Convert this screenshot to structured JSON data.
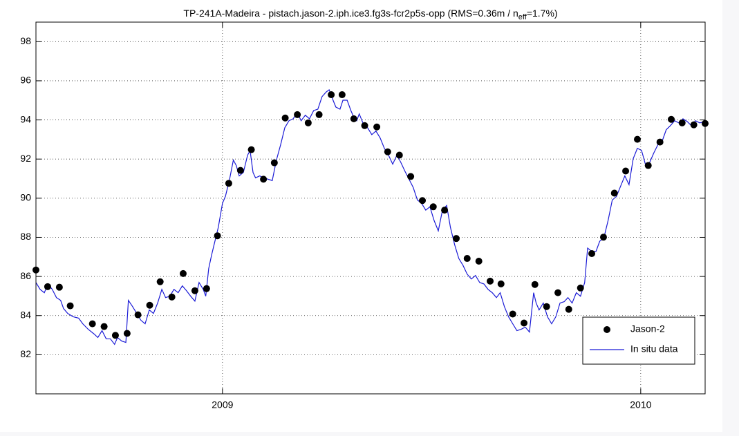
{
  "chart_data": {
    "type": "scatter",
    "title": [
      "TP-241A-Madeira - pistach.jason-2.iph.ice3.fg3s-fcr2p5s-opp (RMS=0.36m / n",
      "eff",
      "=1.7%)"
    ],
    "xlim": [
      2008.554,
      2010.154
    ],
    "xticks": [
      2009,
      2010
    ],
    "ylim": [
      80,
      99
    ],
    "yticks": [
      82,
      84,
      86,
      88,
      90,
      92,
      94,
      96,
      98
    ],
    "grid": true,
    "legend": "lower right",
    "series": [
      {
        "name": "Jason-2",
        "type": "scatter",
        "color": "#000000",
        "x": [
          2008.554,
          2008.582,
          2008.61,
          2008.636,
          2008.689,
          2008.717,
          2008.744,
          2008.772,
          2008.798,
          2008.826,
          2008.851,
          2008.879,
          2008.906,
          2008.934,
          2008.962,
          2008.988,
          2009.015,
          2009.043,
          2009.069,
          2009.098,
          2009.124,
          2009.15,
          2009.179,
          2009.205,
          2009.231,
          2009.26,
          2009.286,
          2009.314,
          2009.34,
          2009.369,
          2009.395,
          2009.423,
          2009.45,
          2009.478,
          2009.504,
          2009.531,
          2009.559,
          2009.585,
          2009.613,
          2009.64,
          2009.666,
          2009.694,
          2009.721,
          2009.747,
          2009.775,
          2009.802,
          2009.828,
          2009.856,
          2009.883,
          2009.911,
          2009.937,
          2009.964,
          2009.992,
          2010.018,
          2010.046,
          2010.073,
          2010.099,
          2010.127,
          2010.154
        ],
        "values": [
          86.33,
          85.48,
          85.45,
          84.5,
          83.58,
          83.44,
          82.99,
          83.09,
          84.04,
          84.53,
          85.73,
          84.95,
          86.15,
          85.27,
          85.38,
          88.08,
          90.76,
          91.42,
          92.48,
          90.97,
          91.81,
          94.1,
          94.27,
          93.85,
          94.27,
          95.29,
          95.29,
          94.06,
          93.71,
          93.64,
          92.37,
          92.2,
          91.11,
          89.88,
          89.56,
          89.39,
          87.94,
          86.92,
          86.78,
          85.76,
          85.62,
          84.08,
          83.62,
          85.59,
          84.46,
          85.17,
          84.32,
          85.41,
          87.17,
          88.01,
          90.26,
          91.39,
          93.01,
          91.67,
          92.87,
          94.03,
          93.85,
          93.75,
          93.82
        ]
      },
      {
        "name": "In situ data",
        "type": "line",
        "color": "#1a1ad6",
        "x": [
          2008.554,
          2008.564,
          2008.574,
          2008.583,
          2008.593,
          2008.603,
          2008.613,
          2008.62,
          2008.63,
          2008.643,
          2008.656,
          2008.666,
          2008.679,
          2008.693,
          2008.702,
          2008.712,
          2008.722,
          2008.732,
          2008.742,
          2008.749,
          2008.759,
          2008.769,
          2008.775,
          2008.785,
          2008.795,
          2008.805,
          2008.815,
          2008.825,
          2008.835,
          2008.845,
          2008.855,
          2008.864,
          2008.874,
          2008.884,
          2008.894,
          2008.904,
          2008.914,
          2008.924,
          2008.934,
          2008.944,
          2008.954,
          2008.96,
          2008.967,
          2008.974,
          2008.98,
          2008.99,
          2009.0,
          2009.007,
          2009.017,
          2009.026,
          2009.033,
          2009.04,
          2009.05,
          2009.06,
          2009.066,
          2009.073,
          2009.079,
          2009.089,
          2009.099,
          2009.109,
          2009.119,
          2009.129,
          2009.139,
          2009.149,
          2009.159,
          2009.169,
          2009.179,
          2009.188,
          2009.198,
          2009.208,
          2009.218,
          2009.228,
          2009.238,
          2009.248,
          2009.255,
          2009.261,
          2009.271,
          2009.281,
          2009.288,
          2009.298,
          2009.307,
          2009.314,
          2009.321,
          2009.327,
          2009.337,
          2009.347,
          2009.357,
          2009.367,
          2009.377,
          2009.387,
          2009.397,
          2009.407,
          2009.417,
          2009.426,
          2009.436,
          2009.446,
          2009.456,
          2009.466,
          2009.476,
          2009.486,
          2009.496,
          2009.506,
          2009.516,
          2009.526,
          2009.536,
          2009.545,
          2009.555,
          2009.565,
          2009.575,
          2009.585,
          2009.595,
          2009.605,
          2009.615,
          2009.625,
          2009.635,
          2009.645,
          2009.655,
          2009.664,
          2009.674,
          2009.684,
          2009.694,
          2009.704,
          2009.714,
          2009.724,
          2009.734,
          2009.744,
          2009.75,
          2009.757,
          2009.767,
          2009.777,
          2009.787,
          2009.797,
          2009.807,
          2009.817,
          2009.826,
          2009.836,
          2009.846,
          2009.856,
          2009.866,
          2009.873,
          2009.883,
          2009.893,
          2009.902,
          2009.912,
          2009.922,
          2009.932,
          2009.942,
          2009.952,
          2009.962,
          2009.972,
          2009.982,
          2009.992,
          2010.002,
          2010.012,
          2010.021,
          2010.031,
          2010.041,
          2010.051,
          2010.061,
          2010.071,
          2010.081,
          2010.091,
          2010.101,
          2010.111,
          2010.121,
          2010.131,
          2010.141,
          2010.154
        ],
        "values": [
          85.69,
          85.34,
          85.17,
          85.62,
          85.34,
          84.92,
          84.78,
          84.36,
          84.11,
          83.94,
          83.87,
          83.58,
          83.3,
          83.06,
          82.88,
          83.23,
          82.81,
          82.81,
          82.53,
          82.88,
          82.7,
          82.63,
          84.78,
          84.46,
          84.11,
          83.76,
          83.58,
          84.29,
          84.11,
          84.64,
          85.34,
          84.92,
          84.99,
          85.34,
          85.17,
          85.52,
          85.27,
          84.99,
          84.74,
          85.69,
          85.34,
          84.99,
          86.4,
          87.1,
          87.63,
          88.51,
          89.74,
          90.09,
          90.97,
          91.95,
          91.67,
          91.14,
          91.32,
          92.2,
          92.44,
          91.32,
          91.04,
          91.14,
          91.04,
          90.97,
          90.9,
          91.95,
          92.73,
          93.6,
          93.96,
          94.06,
          94.38,
          93.96,
          94.24,
          94.06,
          94.48,
          94.55,
          95.19,
          95.43,
          95.54,
          95.19,
          94.66,
          94.55,
          95.01,
          95.01,
          94.48,
          94.13,
          93.96,
          94.31,
          93.78,
          93.6,
          93.25,
          93.43,
          93.08,
          92.55,
          92.2,
          91.74,
          92.2,
          91.85,
          91.39,
          90.97,
          90.55,
          89.91,
          89.74,
          89.39,
          89.56,
          88.86,
          88.33,
          89.39,
          89.63,
          88.51,
          87.63,
          86.92,
          86.57,
          86.12,
          85.87,
          86.05,
          85.69,
          85.62,
          85.34,
          85.17,
          84.92,
          85.17,
          84.46,
          83.94,
          83.58,
          83.23,
          83.3,
          83.41,
          83.16,
          85.17,
          84.64,
          84.29,
          84.64,
          83.94,
          83.58,
          83.94,
          84.64,
          84.71,
          84.92,
          84.64,
          85.17,
          84.99,
          85.69,
          87.45,
          87.28,
          87.28,
          87.8,
          87.98,
          88.86,
          89.91,
          90.09,
          90.62,
          91.14,
          90.69,
          92.02,
          92.55,
          92.44,
          91.67,
          91.81,
          92.3,
          92.73,
          92.9,
          93.5,
          93.71,
          93.96,
          93.85,
          94.06,
          93.92,
          93.71,
          93.96,
          93.85,
          93.92
        ]
      }
    ]
  }
}
